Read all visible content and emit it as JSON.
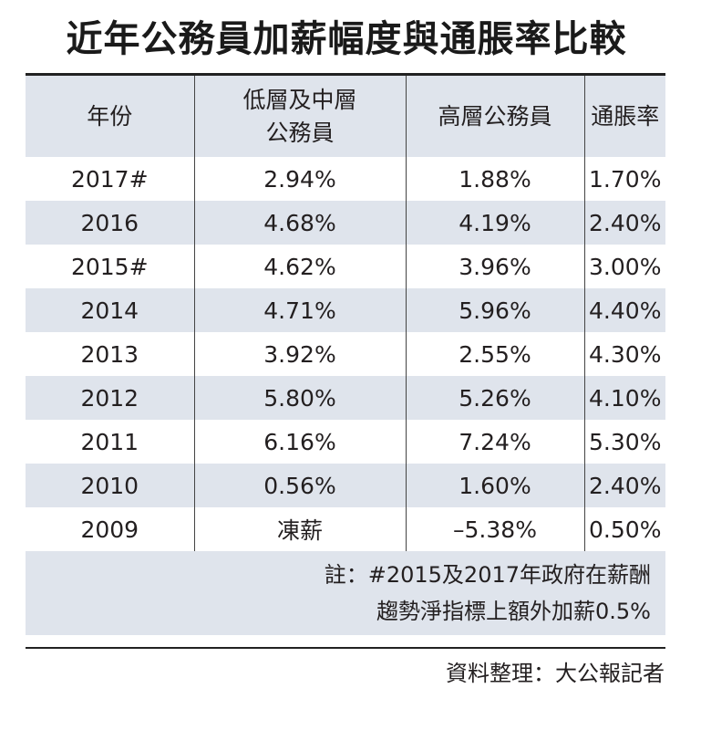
{
  "title": "近年公務員加薪幅度與通脹率比較",
  "headers": [
    "年份",
    "低層及中層公務員",
    "高層公務員",
    "通脹率"
  ],
  "header_lines": {
    "col2_line1": "低層及中層",
    "col2_line2": "公務員"
  },
  "rows": [
    {
      "year": "2017#",
      "low_mid": "2.94%",
      "high": "1.88%",
      "inflation": "1.70%"
    },
    {
      "year": "2016",
      "low_mid": "4.68%",
      "high": "4.19%",
      "inflation": "2.40%"
    },
    {
      "year": "2015#",
      "low_mid": "4.62%",
      "high": "3.96%",
      "inflation": "3.00%"
    },
    {
      "year": "2014",
      "low_mid": "4.71%",
      "high": "5.96%",
      "inflation": "4.40%"
    },
    {
      "year": "2013",
      "low_mid": "3.92%",
      "high": "2.55%",
      "inflation": "4.30%"
    },
    {
      "year": "2012",
      "low_mid": "5.80%",
      "high": "5.26%",
      "inflation": "4.10%"
    },
    {
      "year": "2011",
      "low_mid": "6.16%",
      "high": "7.24%",
      "inflation": "5.30%"
    },
    {
      "year": "2010",
      "low_mid": "0.56%",
      "high": "1.60%",
      "inflation": "2.40%"
    },
    {
      "year": "2009",
      "low_mid": "凍薪",
      "high": "–5.38%",
      "inflation": "0.50%"
    }
  ],
  "note": {
    "line1": "註：#2015及2017年政府在薪酬",
    "line2": "趨勢淨指標上額外加薪0.5%"
  },
  "source": "資料整理：大公報記者",
  "colors": {
    "band": "#dfe4ec",
    "text": "#231f20",
    "rule": "#222222"
  }
}
